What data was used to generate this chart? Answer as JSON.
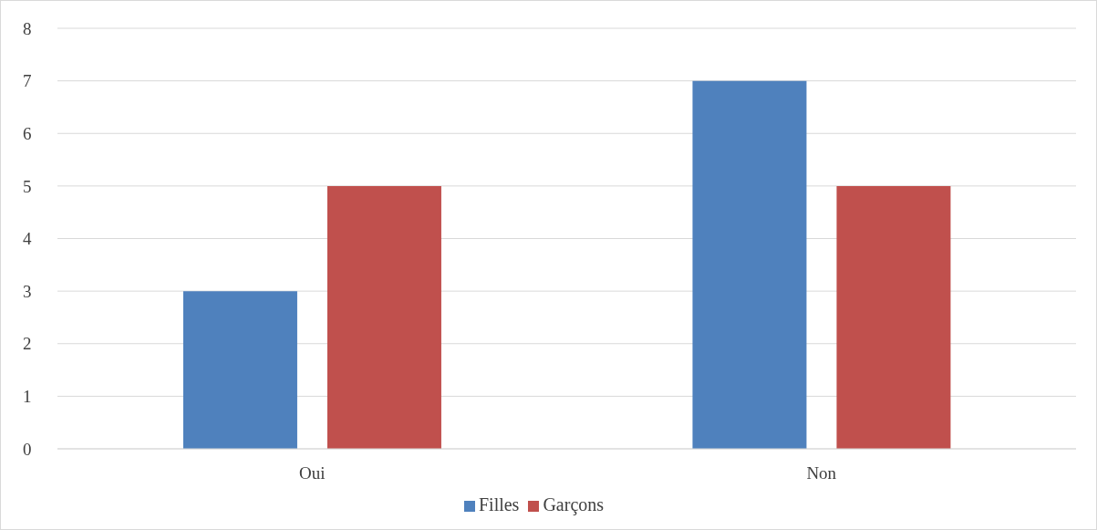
{
  "chart_data": {
    "type": "bar",
    "categories": [
      "Oui",
      "Non"
    ],
    "series": [
      {
        "name": "Filles",
        "color": "#4f81bd",
        "values": [
          3,
          7
        ]
      },
      {
        "name": "Garçons",
        "color": "#c0504d",
        "values": [
          5,
          5
        ]
      }
    ],
    "ylim": [
      0,
      8
    ],
    "yticks": [
      0,
      1,
      2,
      3,
      4,
      5,
      6,
      7,
      8
    ],
    "grid": "y",
    "legend": "bottom"
  }
}
